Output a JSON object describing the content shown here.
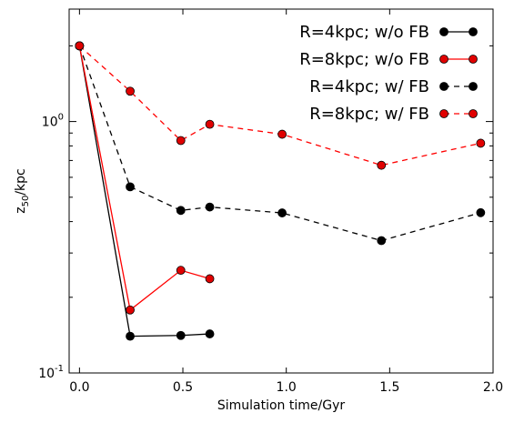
{
  "chart_data": {
    "type": "line",
    "xlabel": "Simulation time/Gyr",
    "ylabel_base": "z",
    "ylabel_sub": "50",
    "ylabel_rest": "/kpc",
    "xlim": [
      -0.05,
      2.0
    ],
    "ylim": [
      0.1,
      2.8
    ],
    "yscale": "log",
    "grid": false,
    "legend_position": "top-right",
    "x_ticks": [
      0.0,
      0.5,
      1.0,
      1.5,
      2.0
    ],
    "x_tick_labels": [
      "0.0",
      "0.5",
      "1.0",
      "1.5",
      "2.0"
    ],
    "y_ticks": [
      0.1,
      1.0
    ],
    "y_tick_labels": [
      {
        "base": "10",
        "exp": "-1"
      },
      {
        "base": "10",
        "exp": "0"
      }
    ],
    "series": [
      {
        "name": "R=4kpc; w/o FB",
        "color": "#000000",
        "marker_fill": "#000000",
        "dashed": false,
        "x": [
          0.0,
          0.245,
          0.49,
          0.63
        ],
        "y": [
          2.0,
          0.14,
          0.141,
          0.143
        ]
      },
      {
        "name": "R=8kpc; w/o FB",
        "color": "#ff0000",
        "marker_fill": "#e00000",
        "dashed": false,
        "x": [
          0.0,
          0.245,
          0.49,
          0.63
        ],
        "y": [
          2.0,
          0.178,
          0.256,
          0.237
        ]
      },
      {
        "name": "R=4kpc; w/ FB",
        "color": "#000000",
        "marker_fill": "#000000",
        "dashed": true,
        "x": [
          0.0,
          0.245,
          0.49,
          0.63,
          0.98,
          1.46,
          1.94
        ],
        "y": [
          2.0,
          0.55,
          0.443,
          0.457,
          0.433,
          0.336,
          0.434
        ]
      },
      {
        "name": "R=8kpc; w/ FB",
        "color": "#ff0000",
        "marker_fill": "#e00000",
        "dashed": true,
        "x": [
          0.0,
          0.245,
          0.49,
          0.63,
          0.98,
          1.46,
          1.94
        ],
        "y": [
          2.0,
          1.32,
          0.84,
          0.975,
          0.89,
          0.67,
          0.82
        ]
      }
    ]
  }
}
